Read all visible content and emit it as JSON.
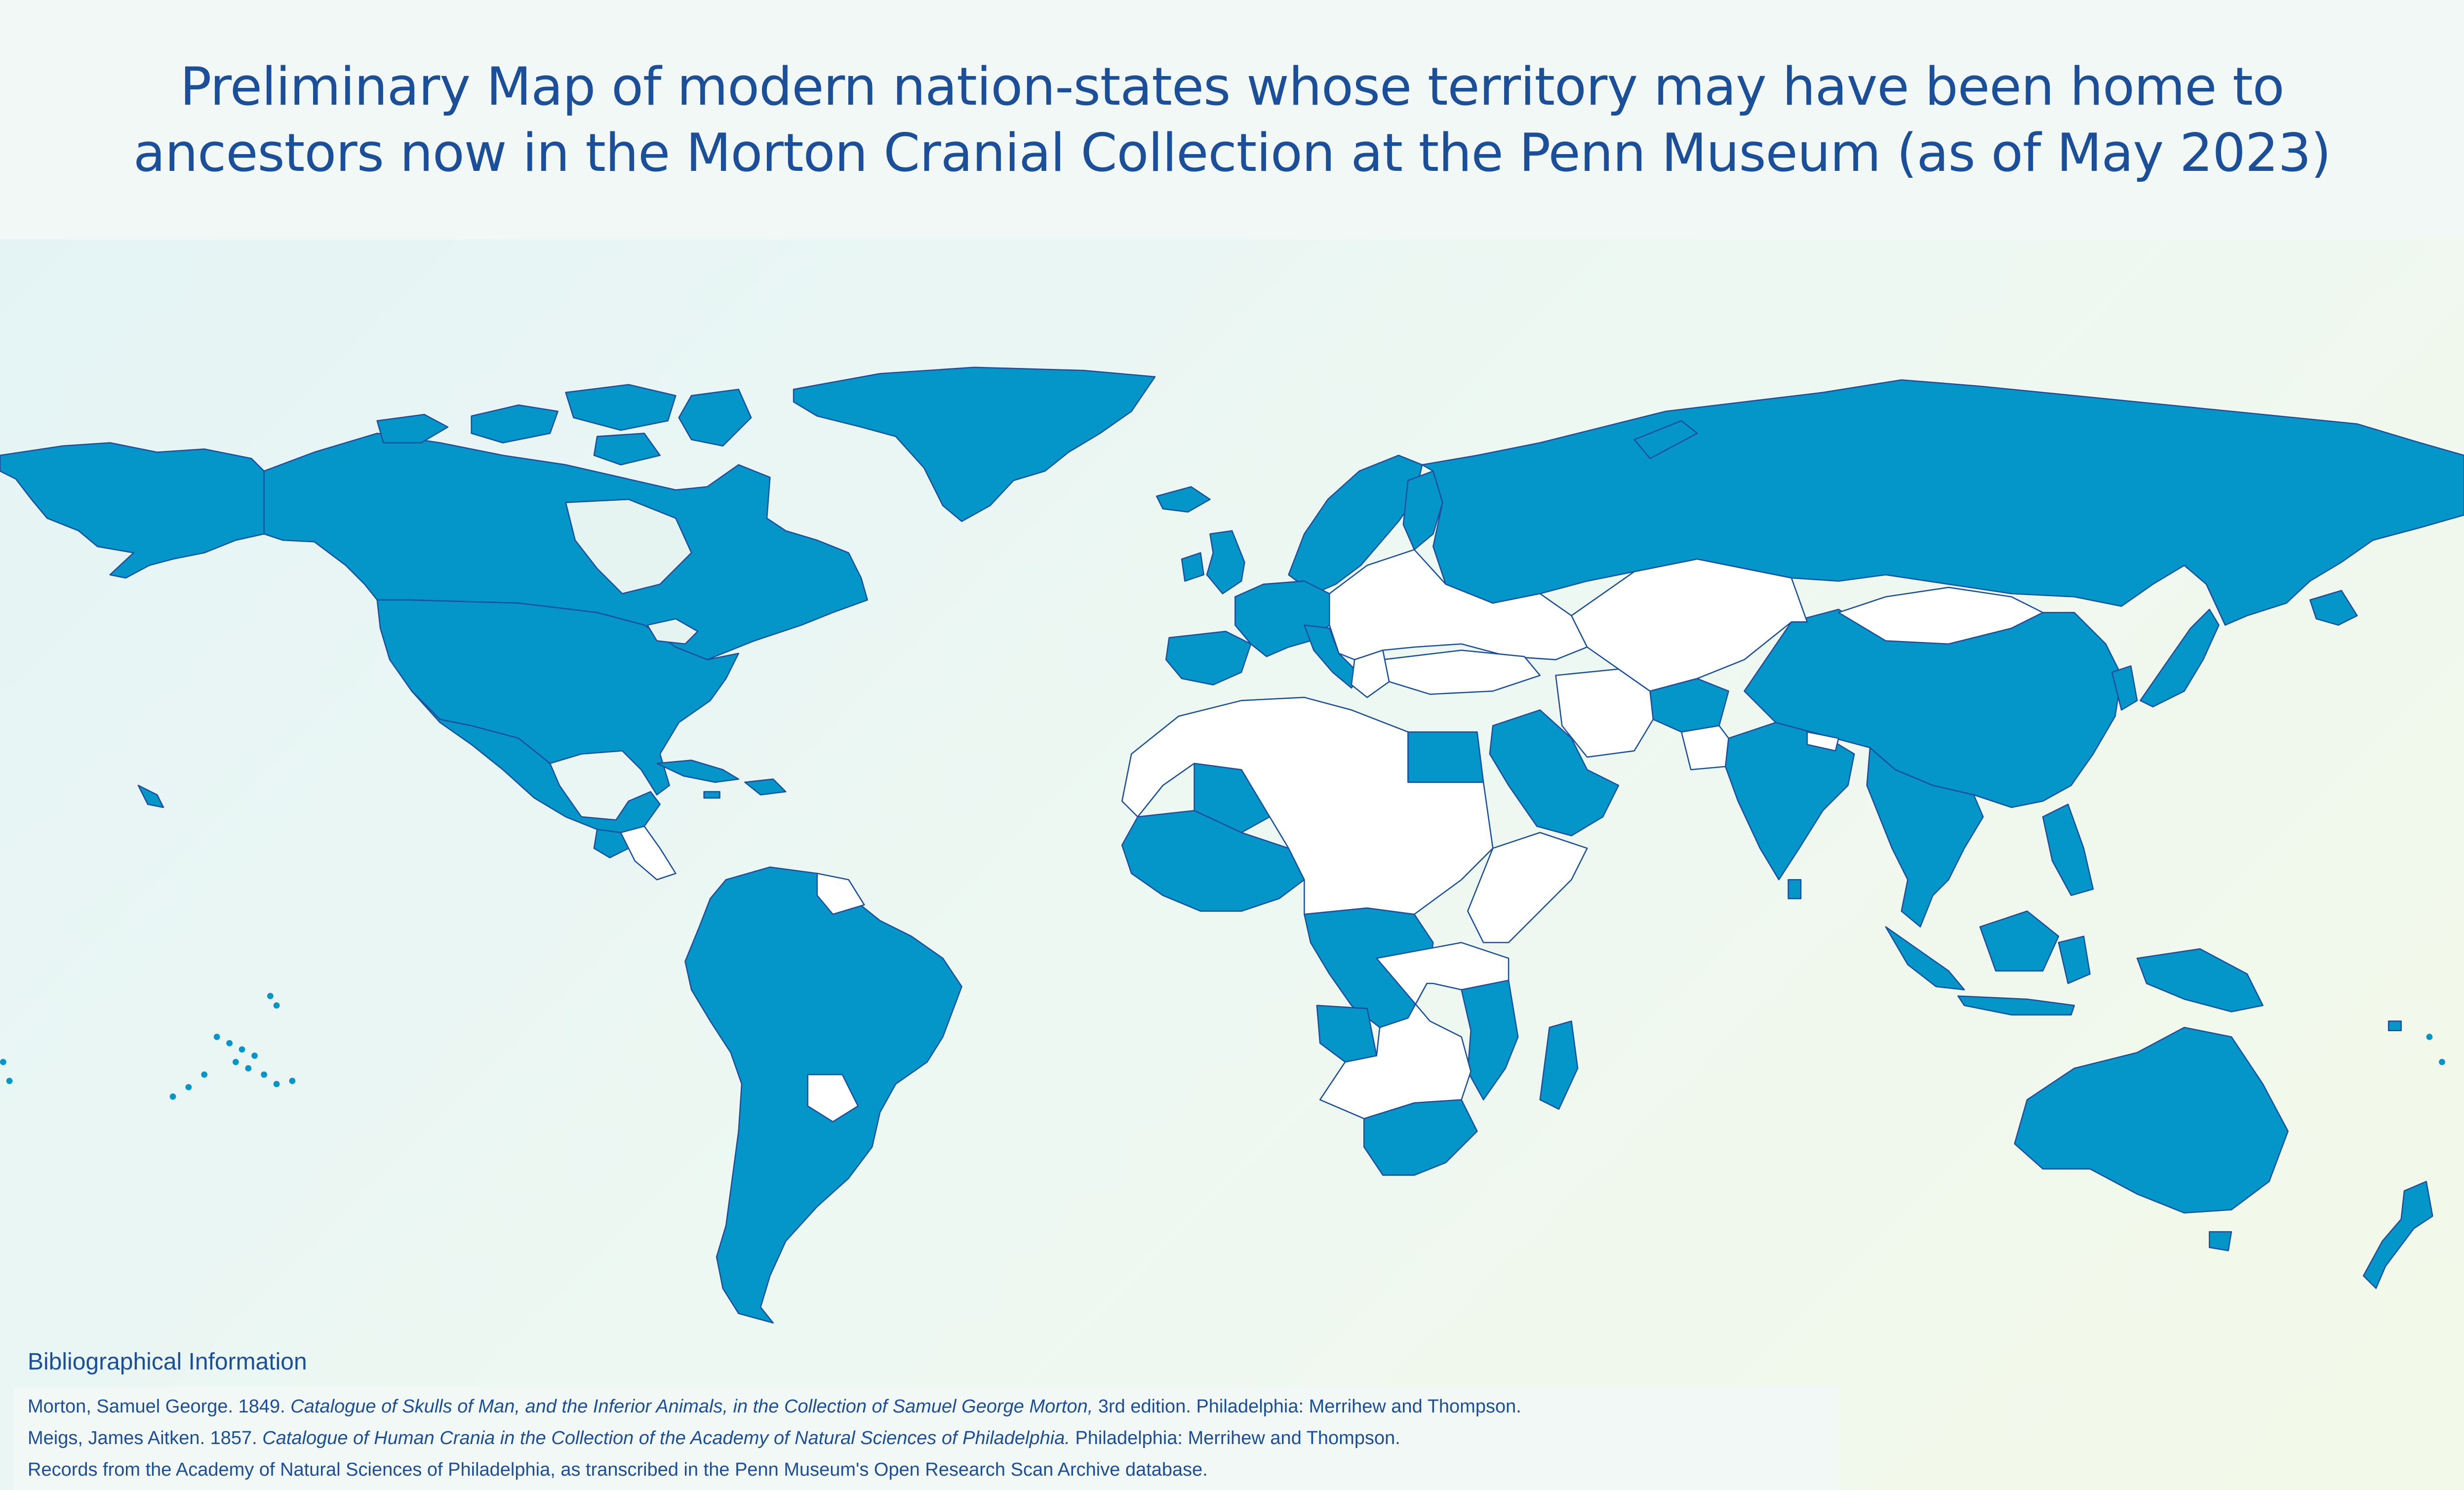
{
  "title": {
    "line1": "Preliminary Map of modern nation-states whose territory may have been home to",
    "line2": "ancestors now in the Morton Cranial Collection at the Penn Museum (as of May 2023)"
  },
  "colors": {
    "highlighted": "#0596c9",
    "not_highlighted": "#ffffff",
    "border": "#1a4f9e",
    "ocean": "#e5f4f1",
    "text": "#1c4f9a"
  },
  "map": {
    "projection": "equirectangular world map",
    "highlighted_regions": [
      "Canada",
      "United States",
      "Greenland",
      "Mexico",
      "Cuba",
      "Haiti",
      "Dominican Republic",
      "Jamaica",
      "Guatemala",
      "Belize",
      "Colombia",
      "Venezuela",
      "Ecuador",
      "Peru",
      "Brazil",
      "Bolivia",
      "Chile",
      "Argentina",
      "Uruguay",
      "United Kingdom",
      "Ireland",
      "Iceland",
      "Norway",
      "Sweden",
      "Finland",
      "Denmark",
      "Netherlands",
      "Belgium",
      "France",
      "Portugal",
      "Spain",
      "Italy",
      "Germany",
      "Switzerland",
      "Russia",
      "Egypt",
      "Saudi Arabia",
      "Yemen",
      "Oman",
      "Afghanistan",
      "India",
      "Sri Lanka",
      "China",
      "Japan",
      "Korea",
      "Thailand",
      "Vietnam",
      "Myanmar",
      "Malaysia",
      "Indonesia",
      "Philippines",
      "Papua New Guinea",
      "Australia",
      "New Zealand",
      "Mali",
      "Senegal",
      "Guinea",
      "Sierra Leone",
      "Liberia",
      "Ivory Coast",
      "Ghana",
      "Nigeria",
      "Cameroon",
      "Gabon",
      "Republic of the Congo",
      "DR Congo",
      "Angola",
      "Tanzania",
      "Mozambique",
      "Malawi",
      "South Africa",
      "Madagascar"
    ]
  },
  "bibliography": {
    "heading": "Bibliographical Information",
    "morton_author": "Morton, Samuel George. 1849. ",
    "morton_title": "Catalogue of Skulls of Man, and the Inferior Animals, in the Collection of Samuel George Morton,",
    "morton_rest": " 3rd edition. Philadelphia: Merrihew and Thompson.",
    "meigs_author": "Meigs, James Aitken. 1857. ",
    "meigs_title": "Catalogue of Human Crania in the Collection of the Academy of Natural Sciences of Philadelphia.",
    "meigs_rest": " Philadelphia: Merrihew and Thompson.",
    "records": "Records from the Academy of Natural Sciences of Philadelphia, as transcribed in the Penn Museum's Open Research Scan Archive database."
  }
}
